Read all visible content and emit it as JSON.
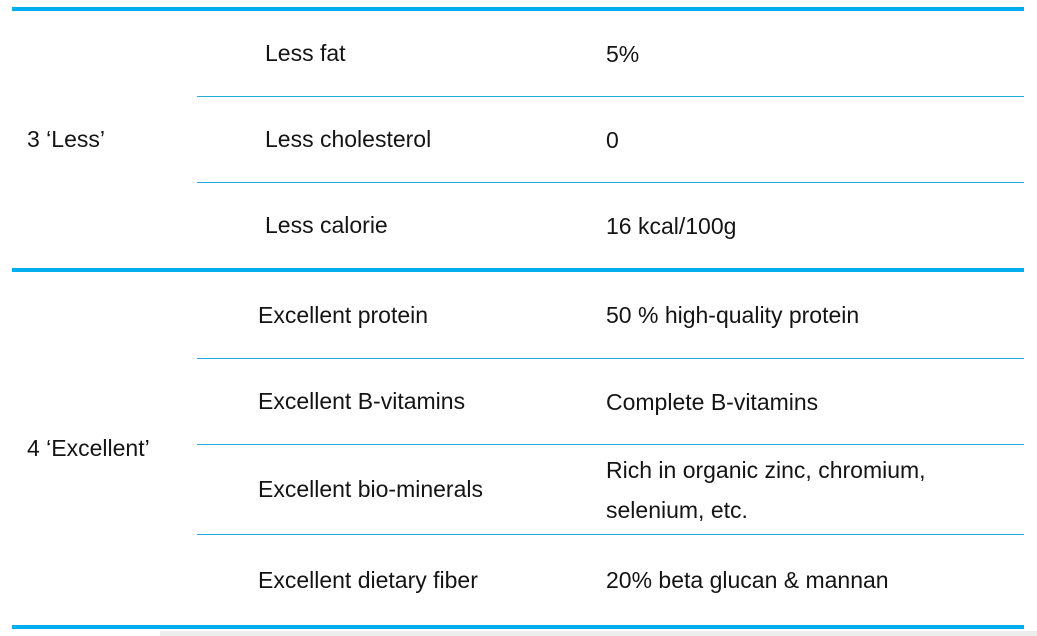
{
  "table": {
    "accent_color": "#00aeef",
    "sections": [
      {
        "group": "3 ‘Less’",
        "rows": [
          {
            "attribute": "Less fat",
            "value": "5%"
          },
          {
            "attribute": "Less cholesterol",
            "value": "0"
          },
          {
            "attribute": "Less calorie",
            "value": "16 kcal/100g"
          }
        ]
      },
      {
        "group": "4 ‘Excellent’",
        "rows": [
          {
            "attribute": "Excellent protein",
            "value": "50 % high-quality protein"
          },
          {
            "attribute": "Excellent B-vitamins",
            "value": "Complete B-vitamins"
          },
          {
            "attribute": "Excellent bio-minerals",
            "value": "Rich in organic zinc, chromium, selenium, etc."
          },
          {
            "attribute": "Excellent dietary fiber",
            "value": "20% beta glucan & mannan"
          }
        ]
      }
    ]
  }
}
